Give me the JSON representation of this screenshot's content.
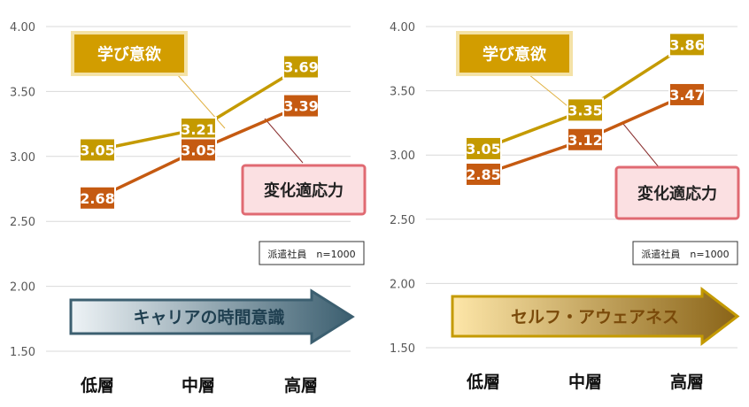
{
  "chart_data": [
    {
      "type": "line",
      "ylim": [
        1.5,
        4.0
      ],
      "yticks": [
        "4.00",
        "3.50",
        "3.00",
        "2.50",
        "2.00",
        "1.50"
      ],
      "categories": [
        "低層",
        "中層",
        "高層"
      ],
      "grid": true,
      "series": [
        {
          "name": "学び意欲",
          "values": [
            3.05,
            3.21,
            3.69
          ],
          "labels": [
            "3.05",
            "3.21",
            "3.69"
          ],
          "color": "#c49a00"
        },
        {
          "name": "変化適応力",
          "values": [
            2.68,
            3.05,
            3.39
          ],
          "labels": [
            "2.68",
            "3.05",
            "3.39"
          ],
          "color": "#c55a11"
        }
      ],
      "note": "派遣社員　n=1000",
      "arrow_label": "キャリアの時間意識",
      "arrow_colors": {
        "start": "#eef3f6",
        "end": "#3c5f70",
        "border": "#3c5f70",
        "text": "#1f3f50"
      }
    },
    {
      "type": "line",
      "ylim": [
        1.5,
        4.0
      ],
      "yticks": [
        "4.00",
        "3.50",
        "3.00",
        "2.50",
        "2.00",
        "1.50"
      ],
      "categories": [
        "低層",
        "中層",
        "高層"
      ],
      "grid": true,
      "series": [
        {
          "name": "学び意欲",
          "values": [
            3.05,
            3.35,
            3.86
          ],
          "labels": [
            "3.05",
            "3.35",
            "3.86"
          ],
          "color": "#c49a00"
        },
        {
          "name": "変化適応力",
          "values": [
            2.85,
            3.12,
            3.47
          ],
          "labels": [
            "2.85",
            "3.12",
            "3.47"
          ],
          "color": "#c55a11"
        }
      ],
      "note": "派遣社員　n=1000",
      "arrow_label": "セルフ・アウェアネス",
      "arrow_colors": {
        "start": "#fde6a8",
        "end": "#8a6418",
        "border": "#c49a00",
        "text": "#7a4a0a"
      }
    }
  ],
  "colors": {
    "learning_box": "#d29d00",
    "learning_box_border": "#f4e2a6",
    "adapt_box_fill": "#fbe0e2",
    "adapt_box_border": "#e06a72",
    "grid": "#d9d9d9",
    "tick_text": "#595959"
  }
}
